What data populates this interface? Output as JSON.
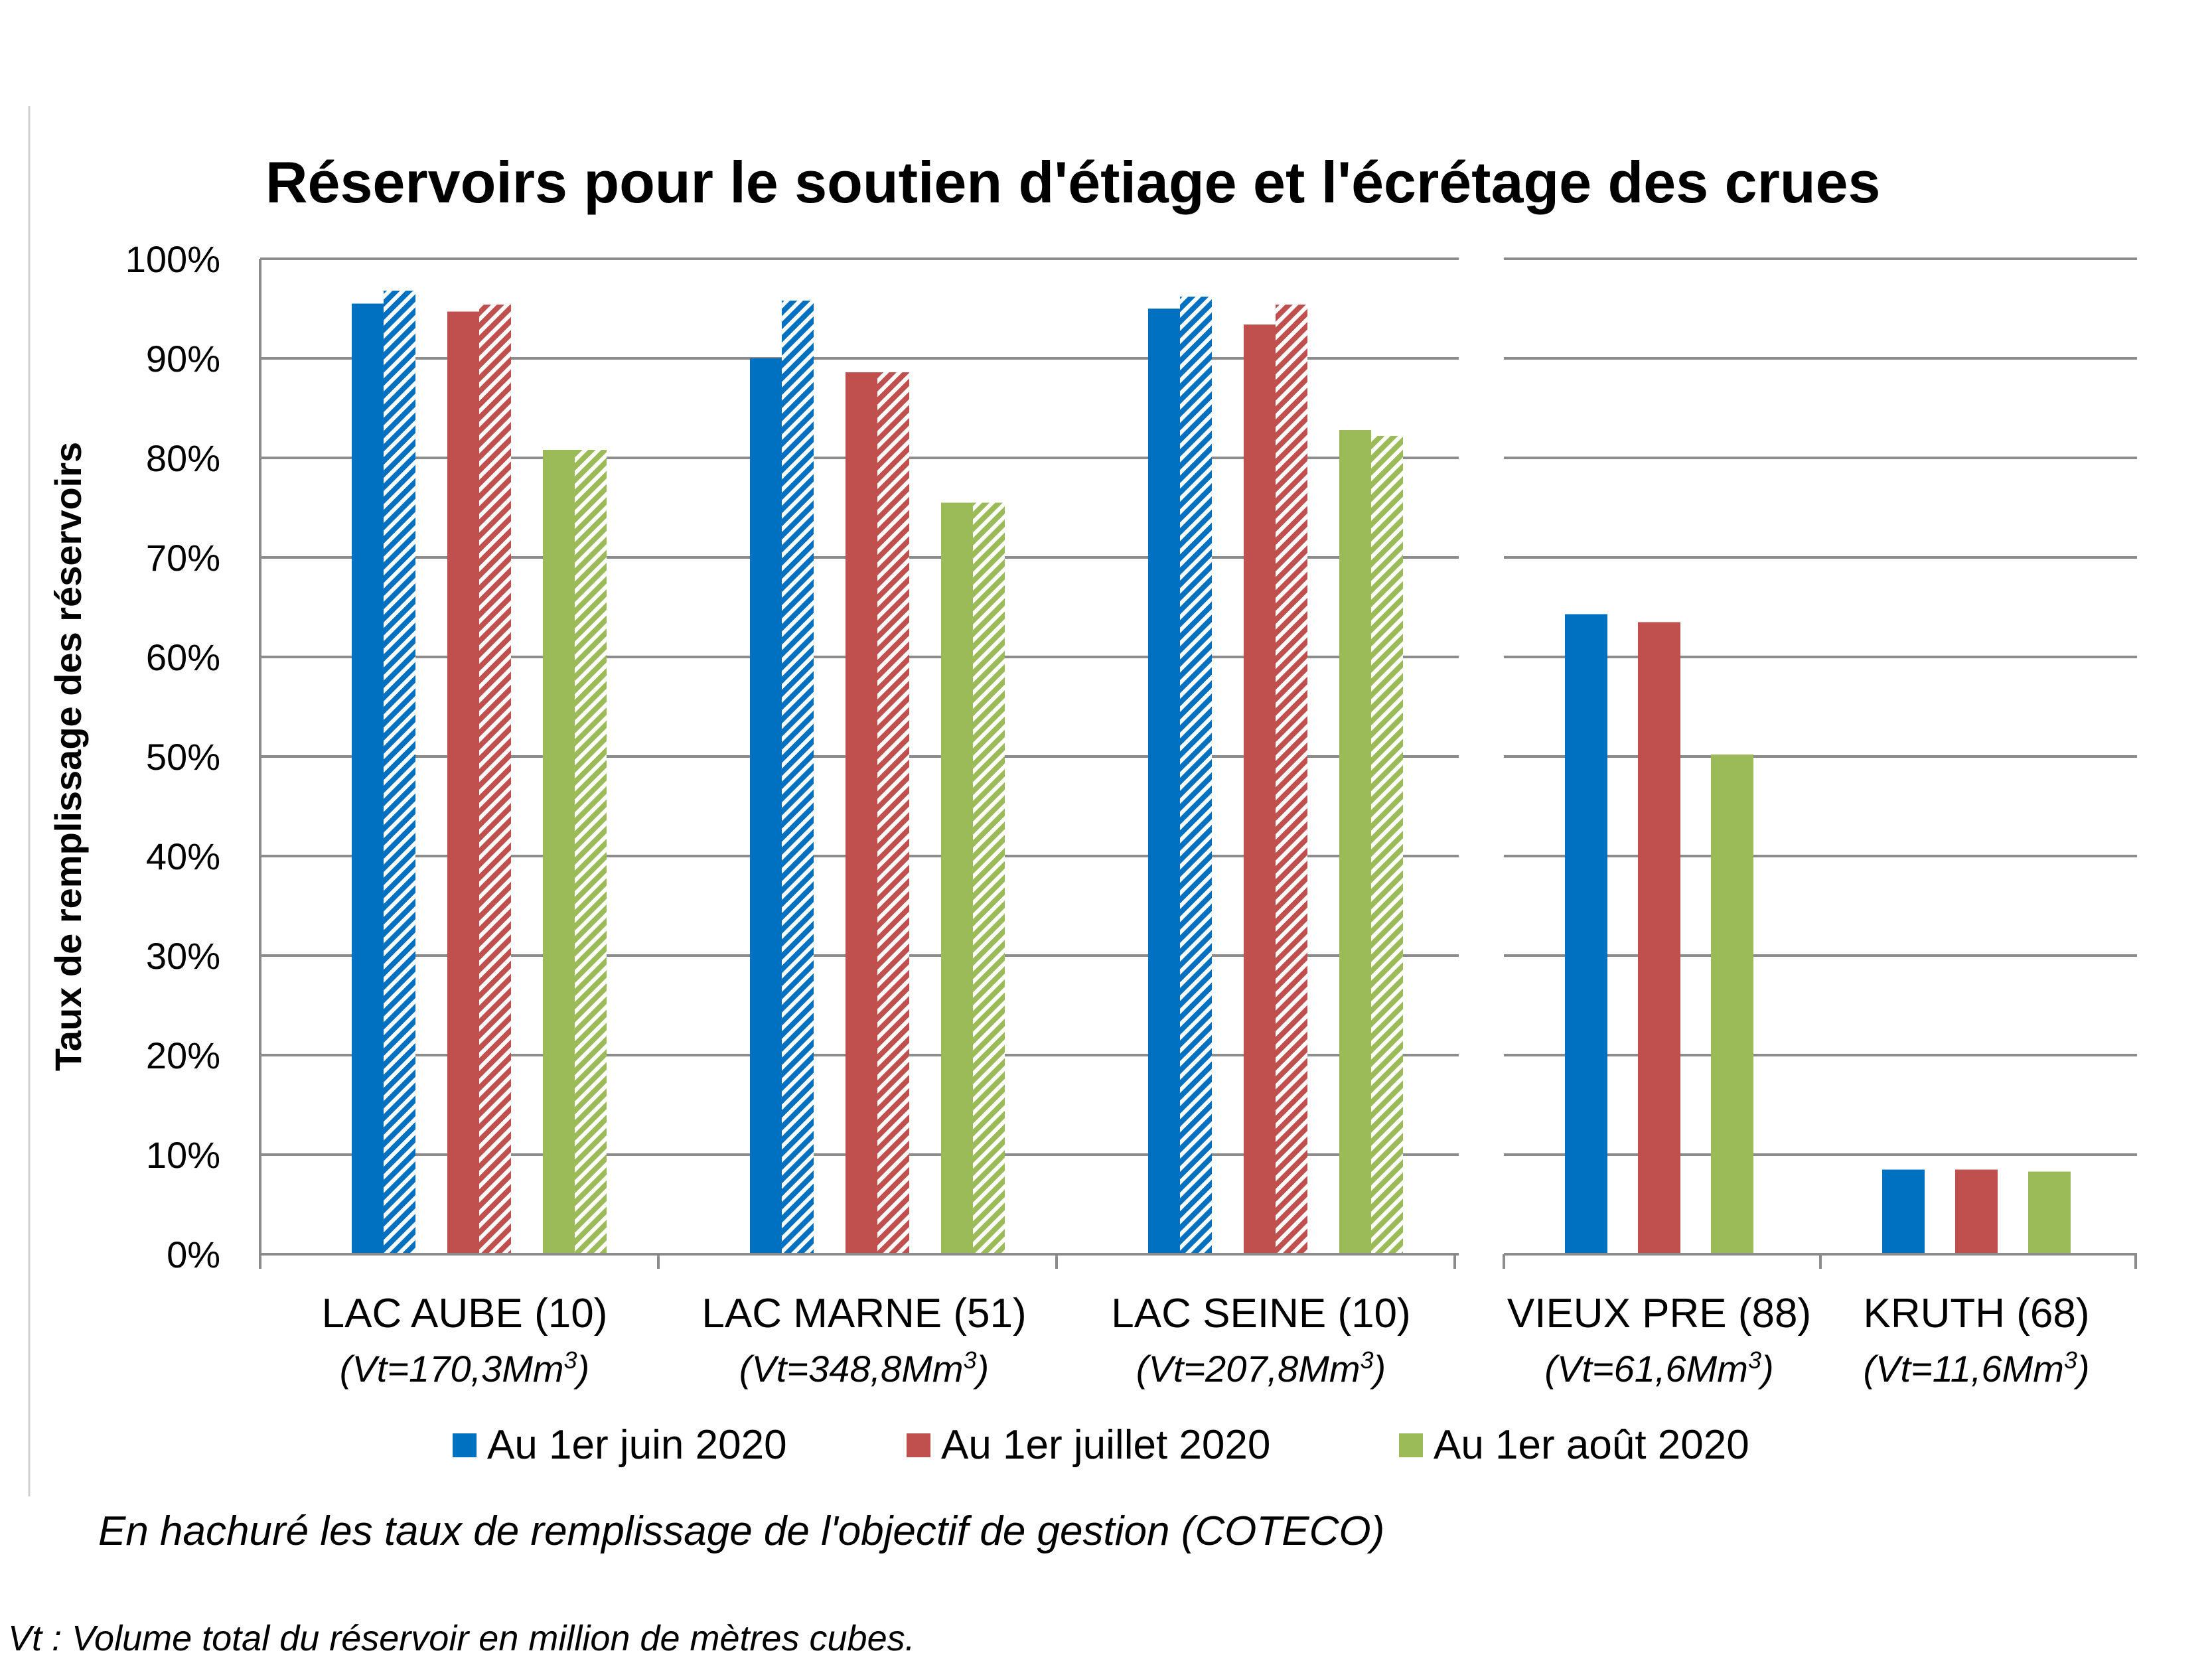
{
  "chart_data": {
    "type": "bar",
    "title": "Réservoirs pour le soutien d'étiage et l'écrétage des crues",
    "ylabel": "Taux de remplissage des réservoirs",
    "ylim": [
      0,
      100
    ],
    "yticks": [
      "0%",
      "10%",
      "20%",
      "30%",
      "40%",
      "50%",
      "60%",
      "70%",
      "80%",
      "90%",
      "100%"
    ],
    "categories": [
      {
        "name": "LAC AUBE (10)",
        "volume": "(Vt=170,3Mm",
        "unit_sup": "3",
        "volume_end": ")"
      },
      {
        "name": "LAC MARNE (51)",
        "volume": "(Vt=348,8Mm",
        "unit_sup": "3",
        "volume_end": ")"
      },
      {
        "name": "LAC SEINE (10)",
        "volume": "(Vt=207,8Mm",
        "unit_sup": "3",
        "volume_end": ")"
      },
      {
        "name": "VIEUX PRE (88)",
        "volume": "(Vt=61,6Mm",
        "unit_sup": "3",
        "volume_end": ")"
      },
      {
        "name": "KRUTH (68)",
        "volume": "(Vt=11,6Mm",
        "unit_sup": "3",
        "volume_end": ")"
      }
    ],
    "series": [
      {
        "name": "Au 1er juin 2020",
        "color": "#0070C0",
        "values": [
          95.5,
          90,
          95,
          64.3,
          8.5
        ],
        "objective": [
          96.8,
          95.8,
          96.2,
          null,
          null
        ]
      },
      {
        "name": "Au 1er juillet 2020",
        "color": "#C0504D",
        "values": [
          94.7,
          88.6,
          93.4,
          63.5,
          8.5
        ],
        "objective": [
          95.4,
          88.6,
          95.4,
          null,
          null
        ]
      },
      {
        "name": "Au 1er août 2020",
        "color": "#9BBB59",
        "values": [
          80.8,
          75.5,
          82.8,
          50.2,
          8.3
        ],
        "objective": [
          80.8,
          75.5,
          82.2,
          null,
          null
        ]
      }
    ],
    "grid": true,
    "legend_position": "bottom"
  },
  "note": "En hachuré les taux de remplissage de l'objectif de gestion (COTECO)",
  "footnote": "Vt : Volume total du réservoir en million de mètres cubes."
}
